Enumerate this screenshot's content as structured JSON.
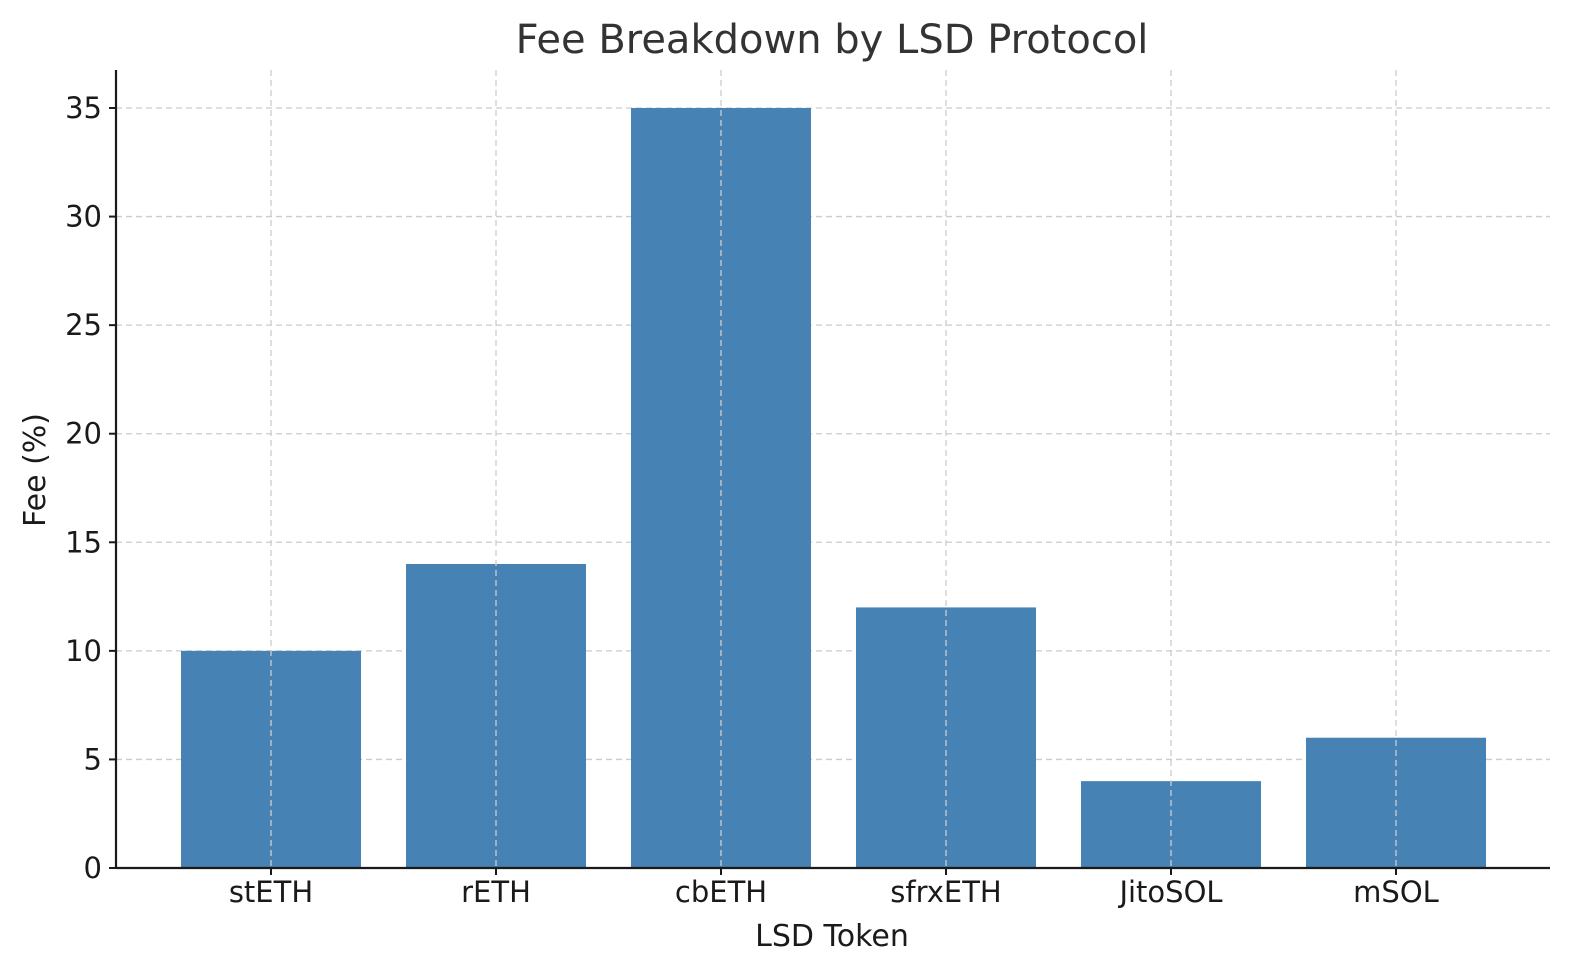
{
  "chart_data": {
    "type": "bar",
    "title": "Fee Breakdown by LSD Protocol",
    "xlabel": "LSD Token",
    "ylabel": "Fee (%)",
    "categories": [
      "stETH",
      "rETH",
      "cbETH",
      "sfrxETH",
      "JitoSOL",
      "mSOL"
    ],
    "values": [
      10,
      14,
      35,
      12,
      4,
      6
    ],
    "ylim": [
      0,
      36.75
    ],
    "yticks": [
      0,
      5,
      10,
      15,
      20,
      25,
      30,
      35
    ],
    "grid": true,
    "bar_color": "#4682b4"
  }
}
